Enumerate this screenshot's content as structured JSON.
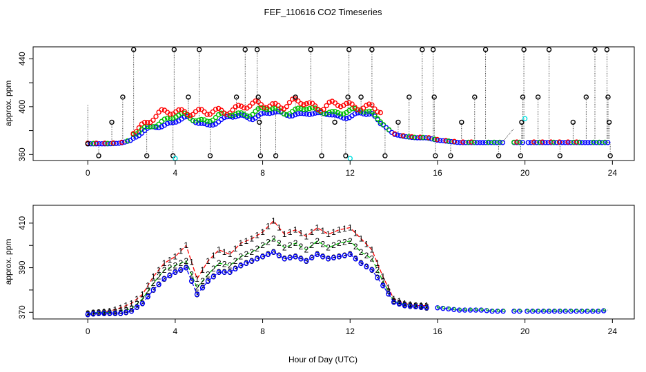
{
  "chart_data": [
    {
      "type": "scatter",
      "title": "FEF_110616  CO2 Timeseries",
      "xlabel": "",
      "ylabel": "approx. ppm",
      "xlim": [
        -2.5,
        25
      ],
      "ylim": [
        355,
        450
      ],
      "xticks": [
        0,
        4,
        8,
        12,
        16,
        20,
        24
      ],
      "yticks": [
        360,
        380,
        400,
        420,
        440
      ],
      "ytick_labels": [
        "360",
        "",
        "400",
        "",
        "440"
      ],
      "colors": {
        "raw": "#000000",
        "series_1": "#ff0000",
        "series_2": "#00c000",
        "series_3": "#0000ff",
        "series_4": "#00e0e0"
      },
      "base": {
        "t": [
          0,
          0.5,
          1,
          1.5,
          2,
          2.5,
          3,
          3.5,
          4,
          4.5,
          5,
          5.5,
          6,
          6.5,
          7,
          7.5,
          8,
          8.5,
          9,
          9.5,
          10,
          10.5,
          11,
          11.5,
          12,
          12.5,
          13,
          13.5,
          14,
          14.5,
          15,
          15.5,
          16,
          16.5,
          17,
          17.5,
          18,
          18.5,
          19,
          19.5,
          20,
          20.5,
          21,
          21.5,
          22,
          22.5,
          23,
          23.5,
          23.8
        ],
        "v": [
          369,
          369,
          369,
          369.5,
          372,
          378,
          383,
          385,
          388,
          390,
          387,
          385,
          388,
          391,
          392,
          391,
          394,
          395,
          393,
          394,
          395,
          393,
          394,
          392,
          392,
          394,
          393,
          385,
          377,
          375,
          374,
          374,
          372,
          371,
          370,
          370,
          370,
          370,
          370,
          370,
          370,
          370,
          370,
          370,
          370,
          370,
          370,
          370,
          370
        ]
      },
      "raw_spikes": [
        {
          "x": 0.5,
          "y": 359
        },
        {
          "x": 1.1,
          "y": 387
        },
        {
          "x": 1.6,
          "y": 408
        },
        {
          "x": 2.1,
          "y": 451
        },
        {
          "x": 2.7,
          "y": 359
        },
        {
          "x": 3.9,
          "y": 359
        },
        {
          "x": 3.95,
          "y": 451
        },
        {
          "x": 4.6,
          "y": 408
        },
        {
          "x": 5.1,
          "y": 451
        },
        {
          "x": 5.6,
          "y": 359
        },
        {
          "x": 6.8,
          "y": 408
        },
        {
          "x": 7.2,
          "y": 451
        },
        {
          "x": 7.75,
          "y": 451
        },
        {
          "x": 7.8,
          "y": 408
        },
        {
          "x": 7.85,
          "y": 387
        },
        {
          "x": 7.9,
          "y": 359
        },
        {
          "x": 8.6,
          "y": 359
        },
        {
          "x": 9.5,
          "y": 408
        },
        {
          "x": 10.2,
          "y": 451
        },
        {
          "x": 10.7,
          "y": 359
        },
        {
          "x": 11.3,
          "y": 387
        },
        {
          "x": 11.8,
          "y": 359
        },
        {
          "x": 11.9,
          "y": 408
        },
        {
          "x": 11.95,
          "y": 451
        },
        {
          "x": 12.5,
          "y": 408
        },
        {
          "x": 13.0,
          "y": 451
        },
        {
          "x": 13.6,
          "y": 359
        },
        {
          "x": 14.2,
          "y": 387
        },
        {
          "x": 14.7,
          "y": 408
        },
        {
          "x": 15.3,
          "y": 451
        },
        {
          "x": 15.8,
          "y": 451
        },
        {
          "x": 15.85,
          "y": 408
        },
        {
          "x": 15.9,
          "y": 359
        },
        {
          "x": 16.6,
          "y": 359
        },
        {
          "x": 17.1,
          "y": 387
        },
        {
          "x": 17.7,
          "y": 408
        },
        {
          "x": 18.2,
          "y": 451
        },
        {
          "x": 18.8,
          "y": 359
        },
        {
          "x": 19.8,
          "y": 359
        },
        {
          "x": 19.85,
          "y": 387
        },
        {
          "x": 19.9,
          "y": 408
        },
        {
          "x": 19.95,
          "y": 451
        },
        {
          "x": 20.6,
          "y": 408
        },
        {
          "x": 21.1,
          "y": 451
        },
        {
          "x": 21.6,
          "y": 359
        },
        {
          "x": 22.2,
          "y": 387
        },
        {
          "x": 22.8,
          "y": 408
        },
        {
          "x": 23.2,
          "y": 451
        },
        {
          "x": 23.75,
          "y": 451
        },
        {
          "x": 23.8,
          "y": 408
        },
        {
          "x": 23.85,
          "y": 387
        },
        {
          "x": 23.9,
          "y": 359
        }
      ],
      "cyan_points": [
        {
          "x": 4.0,
          "y": 354
        },
        {
          "x": 12.0,
          "y": 354
        },
        {
          "x": 20.0,
          "y": 390
        }
      ]
    },
    {
      "type": "line",
      "title": "",
      "xlabel": "Hour of Day (UTC)",
      "ylabel": "approx. ppm",
      "xlim": [
        -2.5,
        25
      ],
      "ylim": [
        367,
        418
      ],
      "xticks": [
        0,
        4,
        8,
        12,
        16,
        20,
        24
      ],
      "yticks": [
        370,
        380,
        390,
        400,
        410
      ],
      "ytick_labels": [
        "370",
        "",
        "390",
        "",
        "410"
      ],
      "series": [
        {
          "label": "1",
          "color": "#ff0000",
          "x": [
            0,
            0.5,
            1,
            1.5,
            2,
            2.5,
            3,
            3.5,
            4,
            4.5,
            5,
            5.5,
            6,
            6.5,
            7,
            7.5,
            8,
            8.5,
            9,
            9.5,
            10,
            10.5,
            11,
            11.5,
            12,
            12.5,
            13,
            13.5,
            14,
            14.5,
            15,
            15.5
          ],
          "y": [
            369.5,
            370,
            370.5,
            372,
            374,
            378,
            386,
            392,
            395,
            400,
            385,
            393,
            398,
            396,
            401,
            403,
            406,
            411,
            405,
            407,
            404,
            408,
            405,
            407,
            408,
            403,
            398,
            386,
            376,
            374,
            373,
            373
          ]
        },
        {
          "label": "2",
          "color": "#00c000",
          "x": [
            0,
            0.5,
            1,
            1.5,
            2,
            2.5,
            3,
            3.5,
            4,
            4.5,
            5,
            5.5,
            6,
            6.5,
            7,
            7.5,
            8,
            8.5,
            9,
            9.5,
            10,
            10.5,
            11,
            11.5,
            12,
            12.5,
            13,
            13.5,
            14,
            14.5,
            15,
            15.5
          ],
          "y": [
            369.5,
            370,
            370,
            370.5,
            371.5,
            376,
            383,
            389,
            391,
            393,
            381,
            387,
            392,
            391,
            395,
            397,
            400,
            403,
            399,
            401,
            398,
            402,
            399,
            401,
            402,
            397,
            394,
            384,
            375,
            373.5,
            373,
            372.5
          ]
        },
        {
          "label": "3",
          "color": "#0000ff",
          "x": [
            0,
            0.5,
            1,
            1.5,
            2,
            2.5,
            3,
            3.5,
            4,
            4.5,
            5,
            5.5,
            6,
            6.5,
            7,
            7.5,
            8,
            8.5,
            9,
            9.5,
            10,
            10.5,
            11,
            11.5,
            12,
            12.5,
            13,
            13.5,
            14,
            14.5,
            15,
            15.5
          ],
          "y": [
            369,
            369.5,
            369.5,
            369.5,
            370.5,
            374,
            380,
            385,
            388,
            390,
            378,
            384,
            388,
            388,
            391,
            393,
            395,
            397,
            394,
            395,
            393,
            396,
            394,
            395,
            396,
            392,
            389,
            382,
            374.5,
            373,
            372.5,
            372
          ]
        },
        {
          "label": "",
          "color": "#0000ff",
          "x": [
            16,
            16.5,
            17,
            17.5,
            18,
            18.5,
            19
          ],
          "y": [
            372,
            371.5,
            371,
            371,
            371,
            370.5,
            370.5
          ]
        },
        {
          "label": "",
          "color": "#0000ff",
          "x": [
            19.5,
            19.9
          ],
          "y": [
            370.5,
            370.5
          ]
        },
        {
          "label": "",
          "color": "#0000ff",
          "x": [
            20.1,
            20.5,
            21,
            21.5,
            22,
            22.5,
            23,
            23.5,
            23.8
          ],
          "y": [
            370.5,
            370.5,
            370.5,
            370.5,
            370.5,
            370.5,
            370.5,
            370.5,
            371
          ]
        }
      ]
    }
  ]
}
